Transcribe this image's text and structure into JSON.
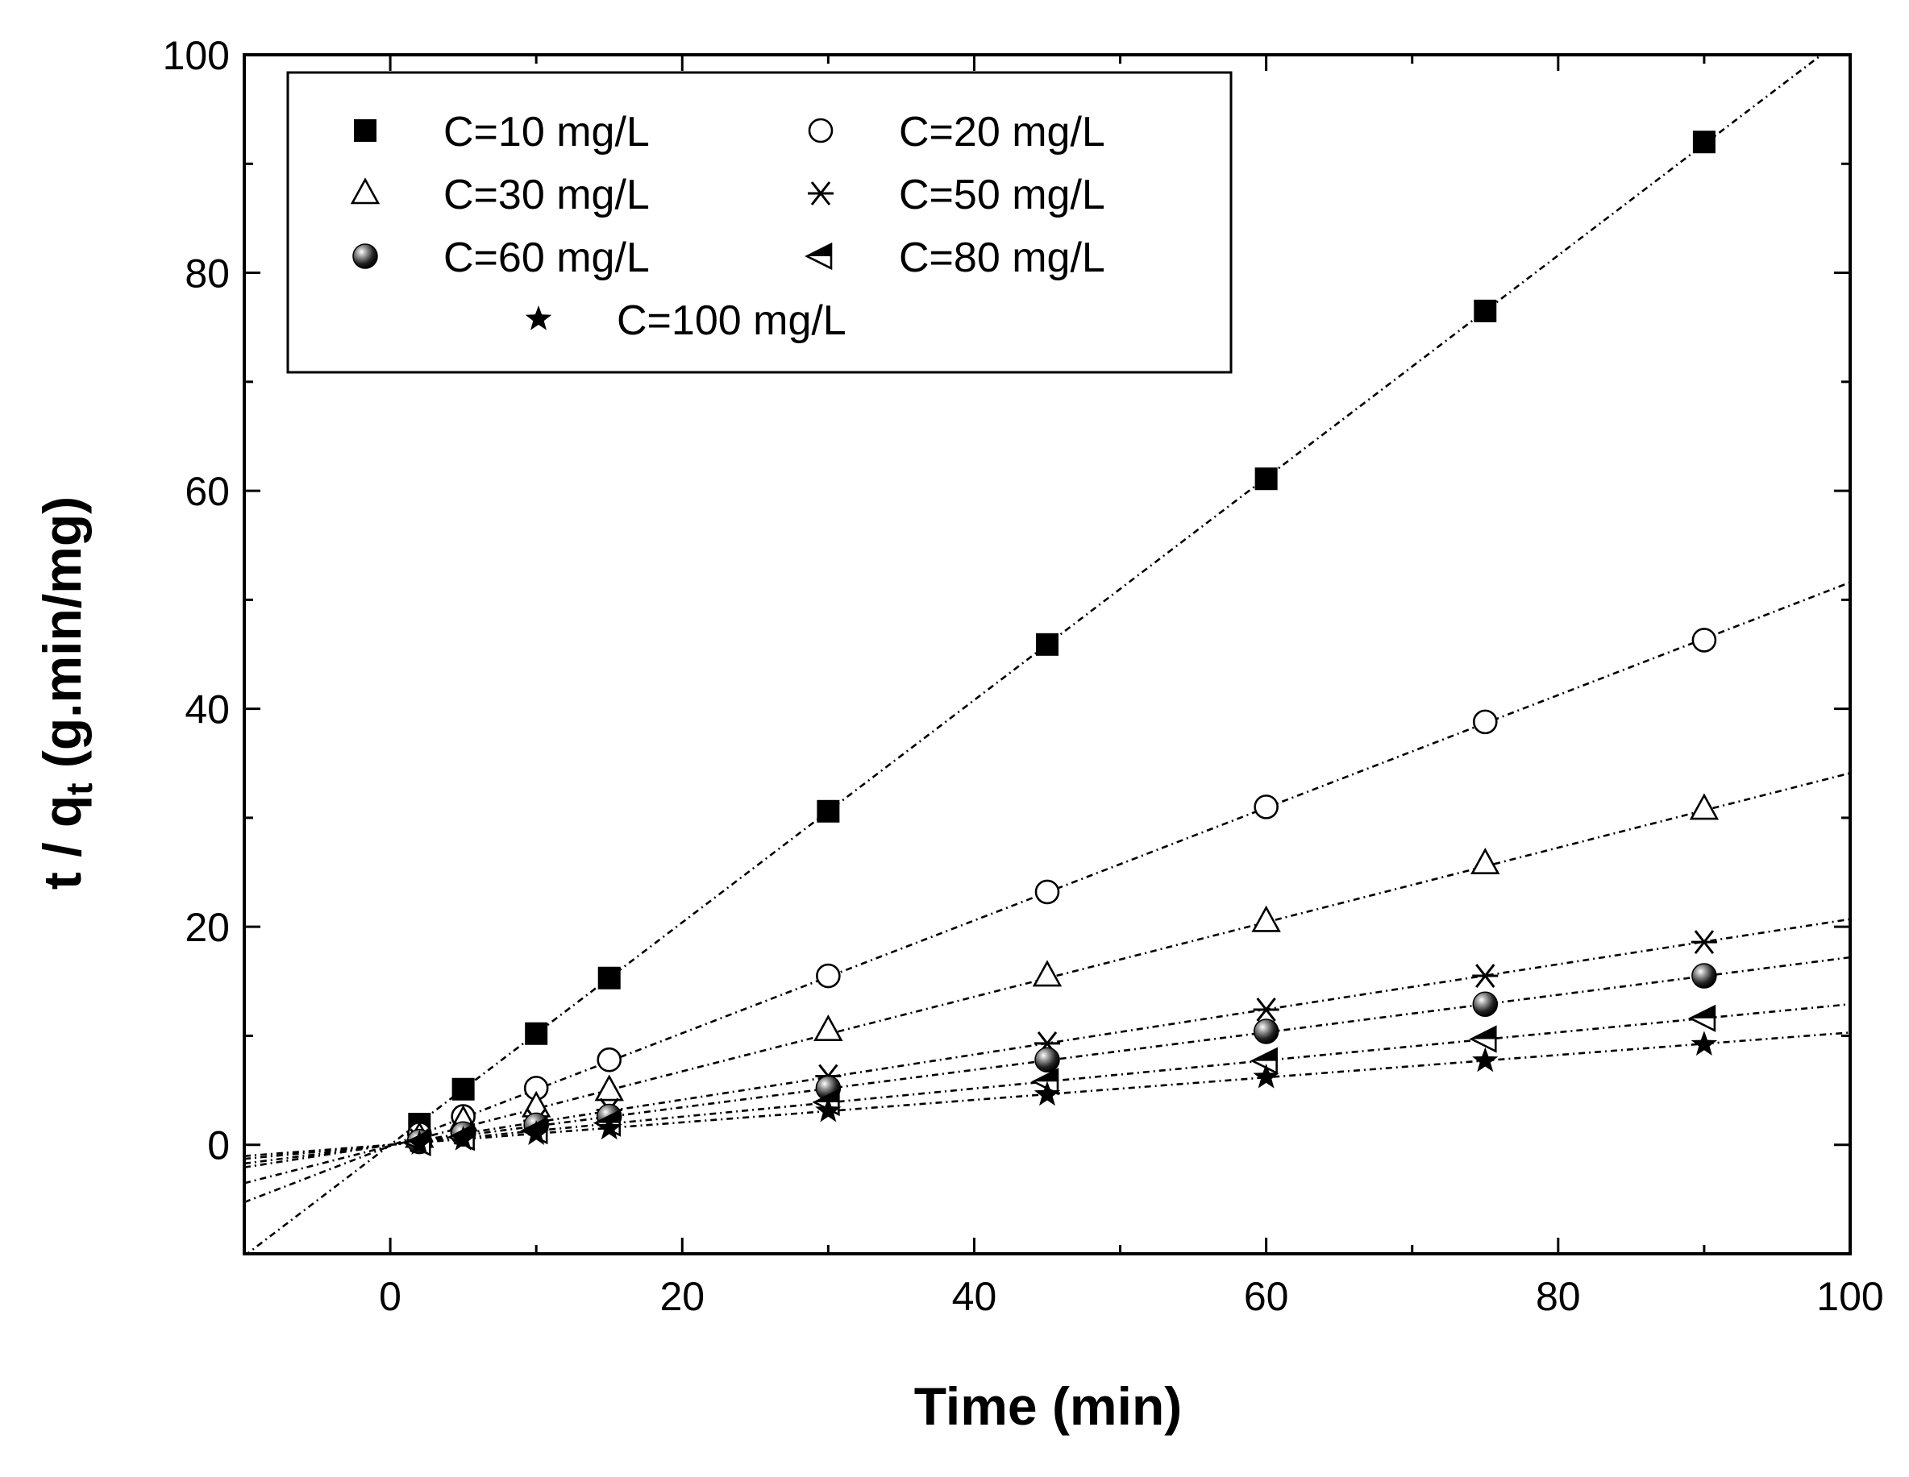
{
  "chart_data": {
    "type": "scatter",
    "title": "",
    "xlabel": "Time (min)",
    "ylabel_main": "t / q",
    "ylabel_sub": "t",
    "ylabel_unit": " (g.min/mg)",
    "xlim": [
      -10,
      100
    ],
    "ylim": [
      -10,
      100
    ],
    "xticks": [
      0,
      20,
      40,
      60,
      80,
      100
    ],
    "yticks": [
      0,
      20,
      40,
      60,
      80,
      100
    ],
    "x": [
      2,
      5,
      10,
      15,
      30,
      45,
      60,
      75,
      90
    ],
    "grid": false,
    "legend_position": "top-left",
    "series": [
      {
        "name": "C=10 mg/L",
        "marker": "filled-square",
        "values": [
          1.9,
          5.1,
          10.2,
          15.3,
          30.6,
          45.9,
          61.1,
          76.5,
          92.0
        ],
        "fit": {
          "slope": 1.02,
          "intercept": 0
        }
      },
      {
        "name": "C=20 mg/L",
        "marker": "open-circle",
        "values": [
          1.0,
          2.6,
          5.2,
          7.8,
          15.5,
          23.2,
          31.0,
          38.8,
          46.3
        ],
        "fit": {
          "slope": 0.517,
          "intercept": -0.1
        }
      },
      {
        "name": "C=30 mg/L",
        "marker": "open-triangle",
        "values": [
          0.7,
          2.2,
          3.5,
          5.0,
          10.5,
          15.5,
          20.5,
          25.8,
          30.8
        ],
        "fit": {
          "slope": 0.342,
          "intercept": -0.1
        }
      },
      {
        "name": "C=50 mg/L",
        "marker": "asterisk",
        "values": [
          0.4,
          1.1,
          2.2,
          3.2,
          6.3,
          9.3,
          12.4,
          15.5,
          18.6
        ],
        "fit": {
          "slope": 0.207,
          "intercept": 0
        }
      },
      {
        "name": "C=60 mg/L",
        "marker": "shaded-sphere",
        "values": [
          0.3,
          1.0,
          1.8,
          2.6,
          5.2,
          7.8,
          10.4,
          12.9,
          15.5
        ],
        "fit": {
          "slope": 0.172,
          "intercept": 0
        }
      },
      {
        "name": "C=80 mg/L",
        "marker": "left-triangle",
        "values": [
          0.2,
          0.7,
          1.3,
          2.0,
          3.9,
          5.8,
          7.7,
          9.7,
          11.6
        ],
        "fit": {
          "slope": 0.129,
          "intercept": 0
        }
      },
      {
        "name": "C=100 mg/L",
        "marker": "star",
        "values": [
          0.1,
          0.5,
          1.0,
          1.5,
          3.1,
          4.6,
          6.2,
          7.7,
          9.2
        ],
        "fit": {
          "slope": 0.103,
          "intercept": 0
        }
      }
    ]
  }
}
